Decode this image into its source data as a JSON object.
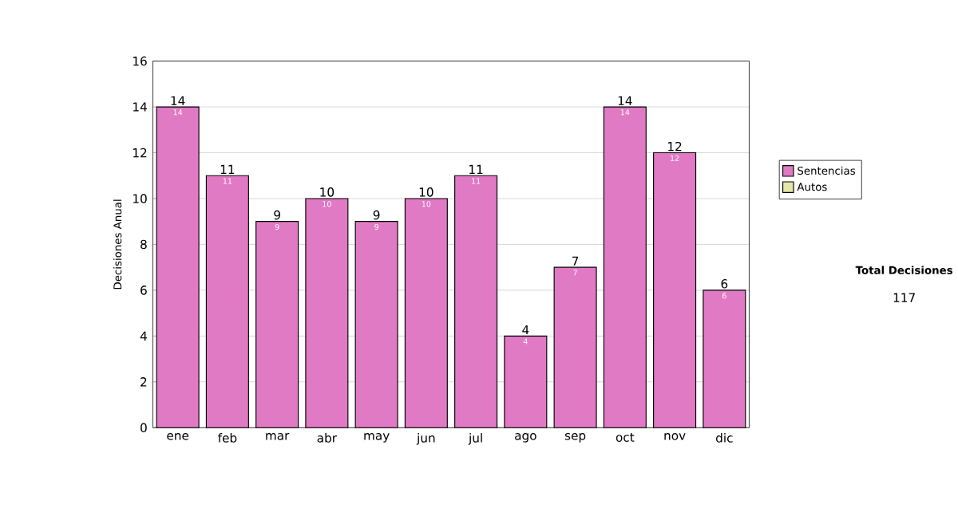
{
  "chart_data": {
    "type": "bar",
    "stacked": true,
    "ylabel": "Decisiones Anual",
    "categories": [
      "ene",
      "feb",
      "mar",
      "abr",
      "may",
      "jun",
      "jul",
      "ago",
      "sep",
      "oct",
      "nov",
      "dic"
    ],
    "series": [
      {
        "name": "Sentencias",
        "color": "#e07ac4",
        "values": [
          14,
          11,
          9,
          10,
          9,
          10,
          11,
          4,
          7,
          14,
          12,
          6
        ],
        "value_labels": [
          "14",
          "11",
          "9",
          "10",
          "9",
          "10",
          "11",
          "4",
          "7",
          "14",
          "12",
          "6"
        ]
      },
      {
        "name": "Autos",
        "color": "#e6e6a8",
        "values": [
          0,
          0,
          0,
          0,
          0,
          0,
          0,
          0,
          0,
          0,
          0,
          0
        ]
      }
    ],
    "totals": [
      "14",
      "11",
      "9",
      "10",
      "9",
      "10",
      "11",
      "4",
      "7",
      "14",
      "12",
      "6"
    ],
    "ylim": [
      0,
      16
    ],
    "yticks": [
      0,
      2,
      4,
      6,
      8,
      10,
      12,
      14,
      16
    ],
    "grid": "y",
    "legend": "right",
    "annotations": [
      "Total Decisiones",
      "117"
    ]
  }
}
